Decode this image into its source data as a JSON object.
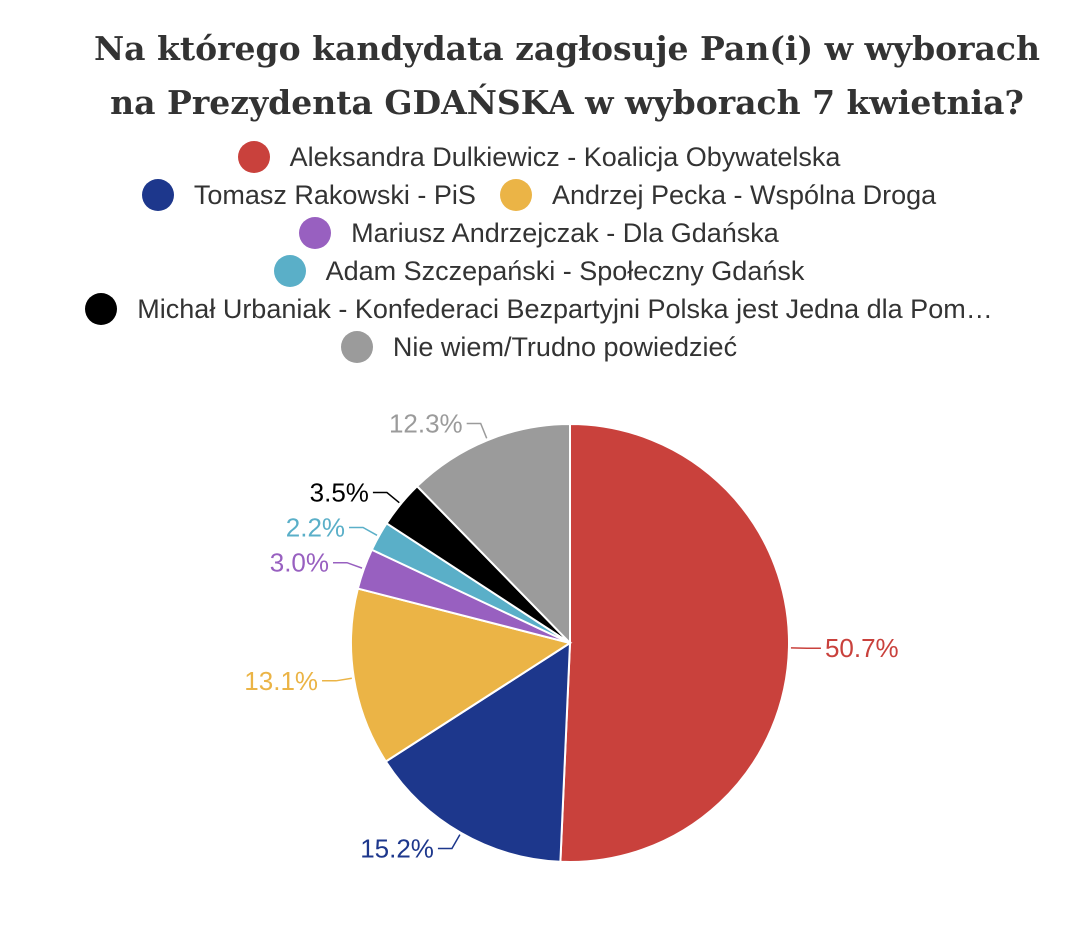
{
  "chart_data": {
    "type": "pie",
    "title_lines": [
      "Na którego kandydata zagłosuje Pan(i) w wyborach",
      "na Prezydenta GDAŃSKA w wyborach 7 kwietnia?"
    ],
    "legend_placement": "top",
    "slices": [
      {
        "label": "Aleksandra Dulkiewicz - Koalicja Obywatelska",
        "value": 50.7,
        "value_label": "50.7%",
        "color": "#c9413c"
      },
      {
        "label": "Tomasz Rakowski - PiS",
        "value": 15.2,
        "value_label": "15.2%",
        "color": "#1d378c"
      },
      {
        "label": "Andrzej Pecka - Wspólna Droga",
        "value": 13.1,
        "value_label": "13.1%",
        "color": "#ebb446"
      },
      {
        "label": "Mariusz Andrzejczak - Dla Gdańska",
        "value": 3.0,
        "value_label": "3.0%",
        "color": "#9860c0"
      },
      {
        "label": "Adam Szczepański - Społeczny Gdańsk",
        "value": 2.2,
        "value_label": "2.2%",
        "color": "#5aafc8"
      },
      {
        "label": "Michał Urbaniak - Konfederaci Bezpartyjni Polska jest Jedna dla Pom…",
        "value": 3.5,
        "value_label": "3.5%",
        "color": "#000000"
      },
      {
        "label": "Nie wiem/Trudno powiedzieć",
        "value": 12.3,
        "value_label": "12.3%",
        "color": "#9b9b9b"
      }
    ]
  }
}
